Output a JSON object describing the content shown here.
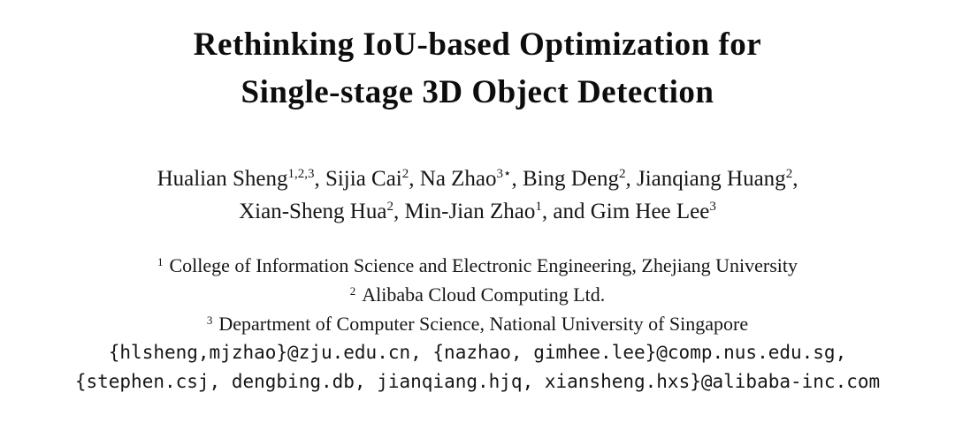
{
  "title": {
    "line1": "Rethinking IoU-based Optimization for",
    "line2": "Single-stage 3D Object Detection"
  },
  "authors": [
    {
      "name": "Hualian Sheng",
      "sup": "1,2,3",
      "sep": ", "
    },
    {
      "name": "Sijia Cai",
      "sup": "2",
      "sep": ", "
    },
    {
      "name": "Na Zhao",
      "sup": "3⋆",
      "sep": ", "
    },
    {
      "name": "Bing Deng",
      "sup": "2",
      "sep": ", "
    },
    {
      "name": "Jianqiang Huang",
      "sup": "2",
      "sep": ","
    },
    {
      "name": "Xian-Sheng Hua",
      "sup": "2",
      "sep": ", "
    },
    {
      "name": "Min-Jian Zhao",
      "sup": "1",
      "sep": ", and "
    },
    {
      "name": "Gim Hee Lee",
      "sup": "3",
      "sep": ""
    }
  ],
  "affiliations": [
    {
      "sup": "1",
      "text": "College of Information Science and Electronic Engineering, Zhejiang University"
    },
    {
      "sup": "2",
      "text": "Alibaba Cloud Computing Ltd."
    },
    {
      "sup": "3",
      "text": "Department of Computer Science, National University of Singapore"
    }
  ],
  "emails": {
    "line1": "{hlsheng,mjzhao}@zju.edu.cn, {nazhao, gimhee.lee}@comp.nus.edu.sg,",
    "line2": "{stephen.csj, dengbing.db, jianqiang.hjq, xiansheng.hxs}@alibaba-inc.com"
  }
}
